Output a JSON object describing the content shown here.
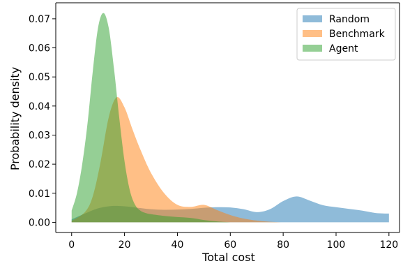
{
  "chart_data": {
    "type": "area",
    "xlabel": "Total cost",
    "ylabel": "Probability density",
    "xlim": [
      -6,
      124
    ],
    "ylim": [
      -0.0035,
      0.0755
    ],
    "xticks": [
      0,
      20,
      40,
      60,
      80,
      100,
      120
    ],
    "yticks": [
      0.0,
      0.01,
      0.02,
      0.03,
      0.04,
      0.05,
      0.06,
      0.07
    ],
    "xtick_labels": [
      "0",
      "20",
      "40",
      "60",
      "80",
      "100",
      "120"
    ],
    "ytick_labels": [
      "0.00",
      "0.01",
      "0.02",
      "0.03",
      "0.04",
      "0.05",
      "0.06",
      "0.07"
    ],
    "grid": false,
    "legend_position": "top-right",
    "series": [
      {
        "name": "Random",
        "color": "#1f77b4",
        "opacity": 0.5,
        "x": [
          0,
          5,
          10,
          15,
          20,
          25,
          30,
          35,
          40,
          45,
          50,
          55,
          60,
          65,
          70,
          75,
          80,
          85,
          90,
          95,
          100,
          105,
          110,
          115,
          120
        ],
        "y": [
          0.001,
          0.003,
          0.0048,
          0.0056,
          0.0055,
          0.005,
          0.0045,
          0.0043,
          0.0044,
          0.0046,
          0.005,
          0.0052,
          0.0051,
          0.0045,
          0.0035,
          0.0045,
          0.0073,
          0.0089,
          0.0075,
          0.0059,
          0.0052,
          0.0046,
          0.004,
          0.0032,
          0.003
        ]
      },
      {
        "name": "Benchmark",
        "color": "#ff7f0e",
        "opacity": 0.5,
        "x": [
          0,
          5,
          8,
          11,
          14,
          17,
          20,
          23,
          26,
          30,
          35,
          40,
          45,
          50,
          55,
          60,
          65,
          70,
          75,
          80
        ],
        "y": [
          0.0005,
          0.0035,
          0.009,
          0.021,
          0.036,
          0.043,
          0.0395,
          0.032,
          0.025,
          0.017,
          0.01,
          0.006,
          0.0053,
          0.006,
          0.0042,
          0.0025,
          0.0013,
          0.0006,
          0.0002,
          0.0
        ]
      },
      {
        "name": "Agent",
        "color": "#2ca02c",
        "opacity": 0.5,
        "x": [
          0,
          2,
          4,
          6,
          8,
          10,
          12,
          14,
          16,
          18,
          20,
          22,
          24,
          26,
          28,
          30,
          35,
          40,
          45,
          50,
          55,
          60
        ],
        "y": [
          0.004,
          0.01,
          0.02,
          0.034,
          0.052,
          0.067,
          0.072,
          0.067,
          0.053,
          0.036,
          0.021,
          0.011,
          0.006,
          0.004,
          0.0032,
          0.0028,
          0.0022,
          0.0018,
          0.0015,
          0.0008,
          0.0003,
          0.0
        ]
      }
    ]
  }
}
